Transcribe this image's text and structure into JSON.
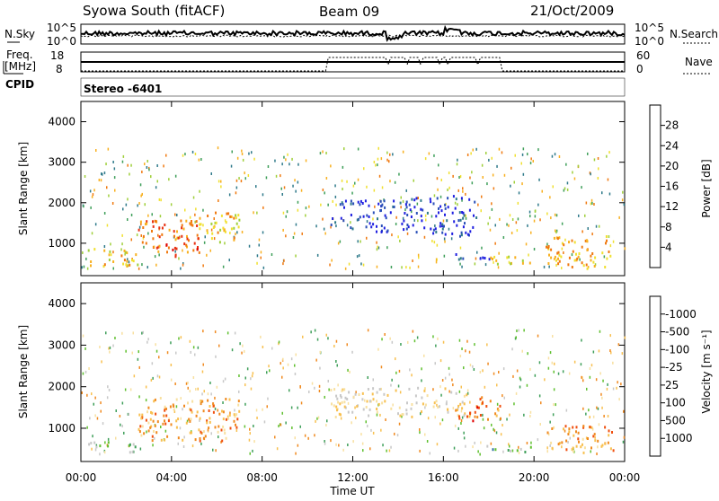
{
  "header": {
    "station": "Syowa South (fitACF)",
    "beam": "Beam 09",
    "date": "21/Oct/2009"
  },
  "noise_panel": {
    "left_label": "N.Sky",
    "left_ticks": [
      "10^5",
      "10^0"
    ],
    "right_ticks": [
      "10^5",
      "10^0"
    ],
    "right_label": "N.Search"
  },
  "freq_panel": {
    "label_line1": "Freq.",
    "label_line2": "[MHz]",
    "left_ticks": [
      "18",
      "8"
    ],
    "right_ticks": [
      "60",
      "0"
    ],
    "right_label": "Nave"
  },
  "cpid": {
    "label": "CPID",
    "value": "Stereo  -6401"
  },
  "chart_data": [
    {
      "type": "heatmap",
      "ylabel": "Slant Range [km]",
      "xlabel": "Time UT",
      "x_ticks": [
        "00:00",
        "04:00",
        "08:00",
        "12:00",
        "16:00",
        "20:00",
        "00:00"
      ],
      "y_ticks": [
        1000,
        2000,
        3000,
        4000
      ],
      "ylim": [
        200,
        4500
      ],
      "colorbar": {
        "label": "Power [dB]",
        "ticks": [
          "4",
          "8",
          "12",
          "16",
          "20",
          "24",
          "28"
        ],
        "colors": [
          "#1f1fe0",
          "#2a4fb8",
          "#2f7a8a",
          "#3f9f5a",
          "#9fcf3a",
          "#f0e030",
          "#f8b020",
          "#f07a10",
          "#e83010",
          "#e00000"
        ]
      },
      "regions": [
        {
          "t": [
            0.2,
            2.5
          ],
          "r": [
            450,
            900
          ],
          "level": 0.6
        },
        {
          "t": [
            2.5,
            5.2
          ],
          "r": [
            700,
            1600
          ],
          "level": 0.75
        },
        {
          "t": [
            3.6,
            5.2
          ],
          "r": [
            850,
            1050
          ],
          "level": 0.95
        },
        {
          "t": [
            5.0,
            7.0
          ],
          "r": [
            1000,
            1800
          ],
          "level": 0.6
        },
        {
          "t": [
            11.0,
            14.5
          ],
          "r": [
            1300,
            2100
          ],
          "level": 0.1
        },
        {
          "t": [
            14.5,
            17.5
          ],
          "r": [
            1200,
            2200
          ],
          "level": 0.1
        },
        {
          "t": [
            16.5,
            18.0
          ],
          "r": [
            600,
            800
          ],
          "level": 0.1
        },
        {
          "t": [
            17.5,
            20.0
          ],
          "r": [
            500,
            700
          ],
          "level": 0.55
        },
        {
          "t": [
            20.5,
            23.5
          ],
          "r": [
            400,
            1200
          ],
          "level": 0.65
        }
      ]
    },
    {
      "type": "heatmap",
      "ylabel": "Slant Range [km]",
      "xlabel": "Time UT",
      "x_ticks": [
        "00:00",
        "04:00",
        "08:00",
        "12:00",
        "16:00",
        "20:00",
        "00:00"
      ],
      "y_ticks": [
        1000,
        2000,
        3000,
        4000
      ],
      "ylim": [
        200,
        4500
      ],
      "colorbar": {
        "label": "Velocity  [m s⁻¹]",
        "ticks": [
          "1000",
          "500",
          "100",
          "25",
          "-25",
          "-100",
          "-500",
          "-1000"
        ],
        "colors": [
          "#2040c0",
          "#3070a0",
          "#3f9f5a",
          "#60c030",
          "#c8c8c8",
          "#f8e0a0",
          "#f8c050",
          "#f08a20",
          "#f05010",
          "#e00000"
        ]
      },
      "regions": [
        {
          "t": [
            0.2,
            2.5
          ],
          "r": [
            450,
            700
          ],
          "level": 0.35
        },
        {
          "t": [
            2.5,
            7.0
          ],
          "r": [
            700,
            1800
          ],
          "level": 0.7
        },
        {
          "t": [
            11.0,
            17.0
          ],
          "r": [
            1300,
            2000
          ],
          "level": 0.55
        },
        {
          "t": [
            16.5,
            18.5
          ],
          "r": [
            1200,
            1800
          ],
          "level": 0.8
        },
        {
          "t": [
            17.5,
            20.0
          ],
          "r": [
            450,
            600
          ],
          "level": 0.3
        },
        {
          "t": [
            20.5,
            23.5
          ],
          "r": [
            400,
            1100
          ],
          "level": 0.7
        }
      ]
    }
  ]
}
